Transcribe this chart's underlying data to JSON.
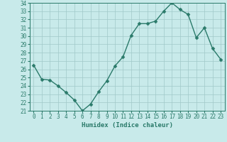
{
  "x": [
    0,
    1,
    2,
    3,
    4,
    5,
    6,
    7,
    8,
    9,
    10,
    11,
    12,
    13,
    14,
    15,
    16,
    17,
    18,
    19,
    20,
    21,
    22,
    23
  ],
  "y": [
    26.5,
    24.8,
    24.7,
    24.0,
    23.2,
    22.3,
    21.0,
    21.8,
    23.3,
    24.6,
    26.4,
    27.5,
    30.1,
    31.5,
    31.5,
    31.8,
    33.0,
    34.0,
    33.2,
    32.6,
    29.8,
    31.0,
    28.5,
    27.2
  ],
  "line_color": "#2a7a6a",
  "marker": "D",
  "marker_size": 2.5,
  "bg_color": "#c8eaea",
  "grid_color": "#a0c8c8",
  "xlabel": "Humidex (Indice chaleur)",
  "ylim": [
    21,
    34
  ],
  "xlim": [
    -0.5,
    23.5
  ],
  "yticks": [
    21,
    22,
    23,
    24,
    25,
    26,
    27,
    28,
    29,
    30,
    31,
    32,
    33,
    34
  ],
  "xticks": [
    0,
    1,
    2,
    3,
    4,
    5,
    6,
    7,
    8,
    9,
    10,
    11,
    12,
    13,
    14,
    15,
    16,
    17,
    18,
    19,
    20,
    21,
    22,
    23
  ],
  "tick_color": "#2a7a6a",
  "tick_fontsize": 5.5,
  "xlabel_fontsize": 6.5,
  "line_width": 1.0
}
